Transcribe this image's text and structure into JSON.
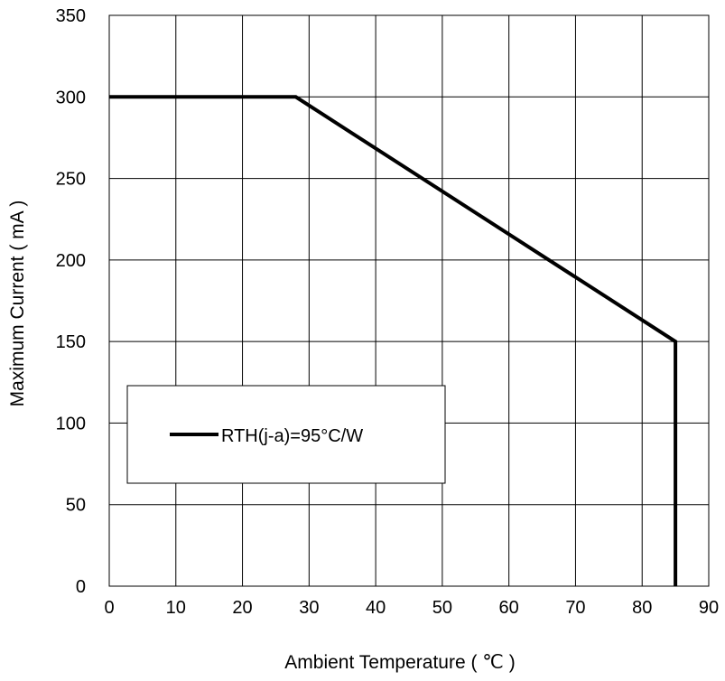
{
  "chart_data": {
    "type": "line",
    "title": "",
    "xlabel": "Ambient Temperature ( ℃ )",
    "ylabel": "Maximum Current ( mA )",
    "xlim": [
      0,
      90
    ],
    "ylim": [
      0,
      350
    ],
    "xticks": [
      0,
      10,
      20,
      30,
      40,
      50,
      60,
      70,
      80,
      90
    ],
    "yticks": [
      0,
      50,
      100,
      150,
      200,
      250,
      300,
      350
    ],
    "xtick_labels": [
      "0",
      "10",
      "20",
      "30",
      "40",
      "50",
      "60",
      "70",
      "80",
      "90"
    ],
    "ytick_labels": [
      "0",
      "50",
      "100",
      "150",
      "200",
      "250",
      "300",
      "350"
    ],
    "grid": true,
    "legend_position": "lower-left",
    "series": [
      {
        "name": "RTH(j-a)=95°C/W",
        "color": "#000000",
        "x": [
          0,
          28,
          85,
          85
        ],
        "y": [
          300,
          300,
          150,
          0
        ]
      }
    ]
  }
}
